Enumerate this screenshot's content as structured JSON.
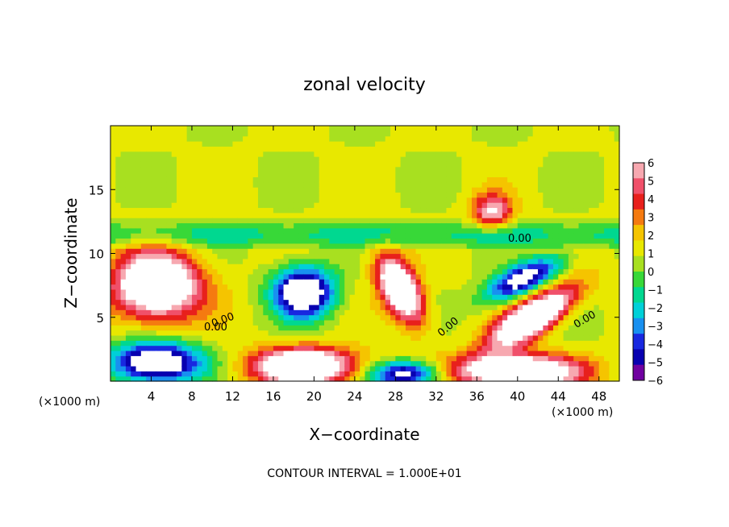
{
  "chart_data": {
    "type": "heatmap",
    "title": "zonal velocity",
    "xlabel": "X−coordinate",
    "ylabel": "Z−coordinate",
    "x_unit_left": "(×1000 m)",
    "x_unit_right": "(×1000 m)",
    "xlim": [
      0,
      50
    ],
    "ylim": [
      0,
      20
    ],
    "x_ticks": [
      "4",
      "8",
      "12",
      "16",
      "20",
      "24",
      "28",
      "32",
      "36",
      "40",
      "44",
      "48"
    ],
    "x_tick_values": [
      4,
      8,
      12,
      16,
      20,
      24,
      28,
      32,
      36,
      40,
      44,
      48
    ],
    "y_ticks": [
      "5",
      "10",
      "15"
    ],
    "y_tick_values": [
      5,
      10,
      15
    ],
    "footer": "CONTOUR INTERVAL = 1.000E+01",
    "contour_labels": [
      "0.00",
      "0.00",
      "0.00",
      "0.00",
      "0.00"
    ],
    "colorbar": {
      "labels": [
        "6",
        "5",
        "4",
        "3",
        "2",
        "1",
        "0",
        "−1",
        "−2",
        "−3",
        "−4",
        "−5",
        "−6"
      ],
      "levels": [
        6,
        5,
        4,
        3,
        2,
        1,
        0,
        -1,
        -2,
        -3,
        -4,
        -5,
        -6
      ],
      "colors": [
        "#f7a8b0",
        "#f0506a",
        "#e8201c",
        "#f57a10",
        "#f5c400",
        "#e8e800",
        "#a8e020",
        "#38d838",
        "#00d890",
        "#00d0d8",
        "#1890f0",
        "#1828e0",
        "#0800b0",
        "#7000a0"
      ]
    },
    "features": [
      {
        "type": "positive",
        "x": 4.5,
        "z": 7.5,
        "rx": 4.2,
        "rz": 2.6,
        "peak": 11
      },
      {
        "type": "negative",
        "x": 19,
        "z": 7.0,
        "rx": 3.0,
        "rz": 2.0,
        "peak": -11
      },
      {
        "type": "positive",
        "x": 28.5,
        "z": 7.2,
        "rx": 3.0,
        "rz": 1.6,
        "peak": 11,
        "tilt": -0.9
      },
      {
        "type": "positive",
        "x": 37.5,
        "z": 13.3,
        "rx": 2.0,
        "rz": 1.4,
        "peak": 6
      },
      {
        "type": "negative",
        "x": 40.5,
        "z": 8.0,
        "rx": 4.0,
        "rz": 1.2,
        "peak": -9,
        "tilt": 0.35
      },
      {
        "type": "positive",
        "x": 41.5,
        "z": 5.0,
        "rx": 4.5,
        "rz": 1.4,
        "peak": 11,
        "tilt": 0.45
      },
      {
        "type": "negative",
        "x": 4.5,
        "z": 1.5,
        "rx": 4.5,
        "rz": 1.6,
        "peak": -11
      },
      {
        "type": "positive",
        "x": 19,
        "z": 1.2,
        "rx": 5.0,
        "rz": 1.4,
        "peak": 11
      },
      {
        "type": "negative",
        "x": 29,
        "z": 0.6,
        "rx": 3.5,
        "rz": 1.0,
        "peak": -9
      },
      {
        "type": "positive",
        "x": 40,
        "z": 0.8,
        "rx": 6.0,
        "rz": 1.3,
        "peak": 11
      }
    ]
  }
}
